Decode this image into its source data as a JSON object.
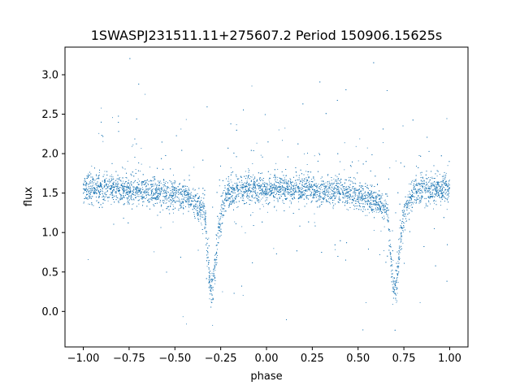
{
  "chart_data": {
    "type": "scatter",
    "title": "1SWASPJ231511.11+275607.2 Period 150906.15625s",
    "xlabel": "phase",
    "ylabel": "flux",
    "xlim": [
      -1.1,
      1.1
    ],
    "ylim": [
      -0.45,
      3.35
    ],
    "grid": false,
    "legend": "none",
    "marker_color": "#1f77b4",
    "x_ticks": [
      -1.0,
      -0.75,
      -0.5,
      -0.25,
      0.0,
      0.25,
      0.5,
      0.75,
      1.0
    ],
    "x_tick_labels": [
      "−1.00",
      "−0.75",
      "−0.50",
      "−0.25",
      "0.00",
      "0.25",
      "0.50",
      "0.75",
      "1.00"
    ],
    "y_ticks": [
      0.0,
      0.5,
      1.0,
      1.5,
      2.0,
      2.5,
      3.0
    ],
    "y_tick_labels": [
      "0.0",
      "0.5",
      "1.0",
      "1.5",
      "2.0",
      "2.5",
      "3.0"
    ],
    "light_curve_profile": {
      "x": [
        -1.0,
        -0.9,
        -0.8,
        -0.7,
        -0.6,
        -0.5,
        -0.45,
        -0.42,
        -0.39,
        -0.36,
        -0.34,
        -0.32,
        -0.31,
        -0.3,
        -0.29,
        -0.28,
        -0.27,
        -0.26,
        -0.24,
        -0.22,
        -0.2,
        -0.1,
        0.0,
        0.1,
        0.2,
        0.3,
        0.4,
        0.5,
        0.55,
        0.58,
        0.61,
        0.64,
        0.66,
        0.68,
        0.69,
        0.7,
        0.71,
        0.72,
        0.73,
        0.74,
        0.76,
        0.78,
        0.8,
        0.9,
        1.0
      ],
      "y": [
        1.55,
        1.55,
        1.55,
        1.53,
        1.52,
        1.48,
        1.45,
        1.42,
        1.38,
        1.33,
        1.27,
        0.7,
        0.3,
        0.25,
        0.35,
        0.6,
        0.85,
        1.05,
        1.3,
        1.45,
        1.52,
        1.55,
        1.55,
        1.55,
        1.55,
        1.53,
        1.52,
        1.48,
        1.45,
        1.42,
        1.38,
        1.33,
        1.27,
        0.7,
        0.3,
        0.25,
        0.35,
        0.6,
        0.85,
        1.05,
        1.3,
        1.45,
        1.52,
        1.55,
        1.55
      ]
    }
  }
}
